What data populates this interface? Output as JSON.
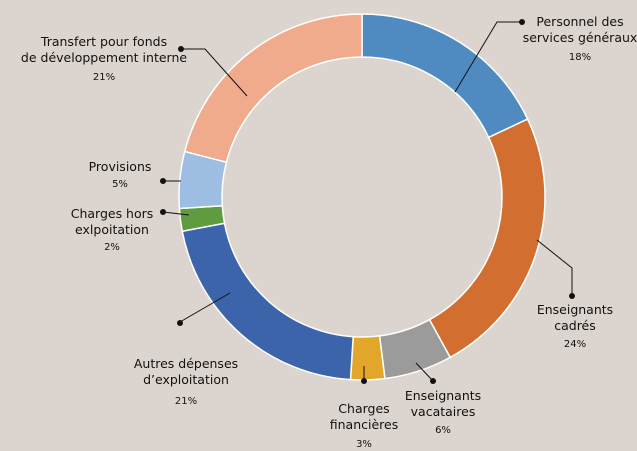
{
  "chart_data": {
    "type": "donut",
    "categories": [
      "Personnel des\nservices généraux",
      "Enseignants\ncadrés",
      "Enseignants\nvacataires",
      "Charges\nfinancières",
      "Autres dépenses\nd’exploitation",
      "Charges hors\nexlpoitation",
      "Provisions",
      "Transfert pour fonds\nde développement interne"
    ],
    "values": [
      18,
      24,
      6,
      3,
      21,
      2,
      5,
      21
    ],
    "value_labels": [
      "18%",
      "24%",
      "6%",
      "3%",
      "21%",
      "2%",
      "5%",
      "21%"
    ],
    "colors": [
      "#4f8bc0",
      "#d36e31",
      "#9b9b9b",
      "#e2a62a",
      "#3c64aa",
      "#5f9c40",
      "#9dbee2",
      "#efab8b"
    ]
  }
}
